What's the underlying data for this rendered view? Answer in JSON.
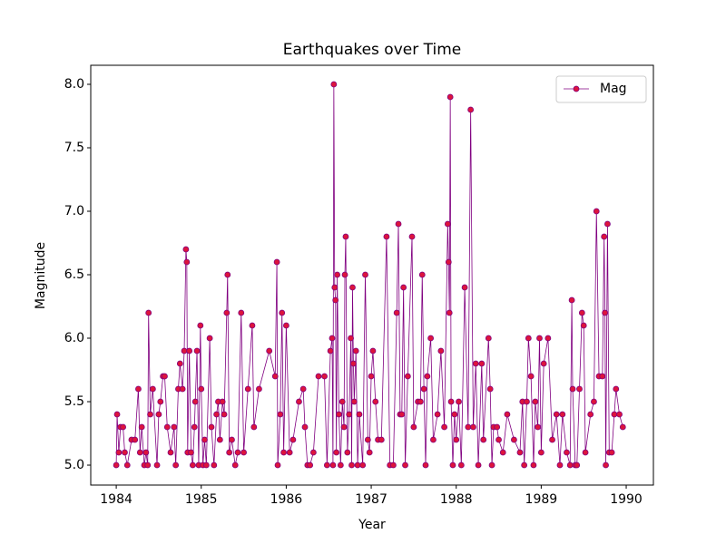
{
  "chart_data": {
    "type": "line",
    "title": "Earthquakes over Time",
    "xlabel": "Year",
    "ylabel": "Magnitude",
    "xlim": [
      1983.7,
      1990.32
    ],
    "xticks": [
      1984,
      1985,
      1986,
      1987,
      1988,
      1989,
      1990
    ],
    "ylim": [
      4.843,
      8.15
    ],
    "yticks": [
      {
        "value": 5,
        "label": "5.0"
      },
      {
        "value": 5.5,
        "label": "5.5"
      },
      {
        "value": 6,
        "label": "6.0"
      },
      {
        "value": 6.5,
        "label": "6.5"
      },
      {
        "value": 7,
        "label": "7.0"
      },
      {
        "value": 7.5,
        "label": "7.5"
      },
      {
        "value": 8,
        "label": "8.0"
      }
    ],
    "legend": "upper right",
    "grid": false,
    "x": [
      1984.0,
      1984.01,
      1984.03,
      1984.05,
      1984.08,
      1984.1,
      1984.13,
      1984.18,
      1984.22,
      1984.26,
      1984.28,
      1984.3,
      1984.33,
      1984.35,
      1984.37,
      1984.38,
      1984.4,
      1984.43,
      1984.48,
      1984.5,
      1984.52,
      1984.55,
      1984.57,
      1984.6,
      1984.64,
      1984.68,
      1984.7,
      1984.73,
      1984.75,
      1984.78,
      1984.8,
      1984.82,
      1984.83,
      1984.84,
      1984.86,
      1984.88,
      1984.9,
      1984.92,
      1984.93,
      1984.95,
      1984.97,
      1984.99,
      1985.0,
      1985.02,
      1985.04,
      1985.06,
      1985.1,
      1985.12,
      1985.15,
      1985.18,
      1985.2,
      1985.22,
      1985.25,
      1985.27,
      1985.3,
      1985.31,
      1985.33,
      1985.36,
      1985.4,
      1985.43,
      1985.47,
      1985.5,
      1985.55,
      1985.6,
      1985.62,
      1985.68,
      1985.8,
      1985.87,
      1985.89,
      1985.9,
      1985.93,
      1985.95,
      1985.97,
      1986.0,
      1986.04,
      1986.08,
      1986.15,
      1986.2,
      1986.22,
      1986.25,
      1986.28,
      1986.32,
      1986.38,
      1986.45,
      1986.48,
      1986.52,
      1986.54,
      1986.55,
      1986.56,
      1986.57,
      1986.58,
      1986.59,
      1986.6,
      1986.62,
      1986.64,
      1986.66,
      1986.68,
      1986.69,
      1986.7,
      1986.72,
      1986.74,
      1986.76,
      1986.77,
      1986.78,
      1986.79,
      1986.8,
      1986.82,
      1986.84,
      1986.86,
      1986.9,
      1986.93,
      1986.96,
      1986.98,
      1987.0,
      1987.02,
      1987.05,
      1987.08,
      1987.12,
      1987.18,
      1987.22,
      1987.26,
      1987.3,
      1987.32,
      1987.34,
      1987.36,
      1987.38,
      1987.4,
      1987.43,
      1987.48,
      1987.5,
      1987.55,
      1987.58,
      1987.6,
      1987.62,
      1987.64,
      1987.66,
      1987.7,
      1987.73,
      1987.78,
      1987.82,
      1987.86,
      1987.9,
      1987.91,
      1987.92,
      1987.93,
      1987.94,
      1987.96,
      1987.98,
      1988.0,
      1988.03,
      1988.06,
      1988.1,
      1988.14,
      1988.17,
      1988.2,
      1988.23,
      1988.26,
      1988.3,
      1988.32,
      1988.38,
      1988.4,
      1988.42,
      1988.44,
      1988.48,
      1988.5,
      1988.55,
      1988.6,
      1988.68,
      1988.75,
      1988.78,
      1988.8,
      1988.83,
      1988.85,
      1988.88,
      1988.91,
      1988.93,
      1988.96,
      1988.98,
      1989.0,
      1989.03,
      1989.08,
      1989.13,
      1989.18,
      1989.22,
      1989.25,
      1989.3,
      1989.34,
      1989.36,
      1989.37,
      1989.4,
      1989.42,
      1989.45,
      1989.48,
      1989.5,
      1989.52,
      1989.58,
      1989.62,
      1989.65,
      1989.68,
      1989.72,
      1989.74,
      1989.75,
      1989.76,
      1989.78,
      1989.8,
      1989.83,
      1989.86,
      1989.88,
      1989.92,
      1989.96
    ],
    "series": [
      {
        "name": "Mag",
        "color": "#800080",
        "marker_color": "#dc143c",
        "values": [
          5.0,
          5.4,
          5.1,
          5.3,
          5.3,
          5.1,
          5.0,
          5.2,
          5.2,
          5.6,
          5.1,
          5.3,
          5.0,
          5.1,
          5.0,
          6.2,
          5.4,
          5.6,
          5.0,
          5.4,
          5.5,
          5.7,
          5.7,
          5.3,
          5.1,
          5.3,
          5.0,
          5.6,
          5.8,
          5.6,
          5.9,
          6.7,
          6.6,
          5.1,
          5.9,
          5.1,
          5.0,
          5.3,
          5.5,
          5.9,
          5.0,
          6.1,
          5.6,
          5.0,
          5.2,
          5.0,
          6.0,
          5.3,
          5.0,
          5.4,
          5.5,
          5.2,
          5.5,
          5.4,
          6.2,
          6.5,
          5.1,
          5.2,
          5.0,
          5.1,
          6.2,
          5.1,
          5.6,
          6.1,
          5.3,
          5.6,
          5.9,
          5.7,
          6.6,
          5.0,
          5.4,
          6.2,
          5.1,
          6.1,
          5.1,
          5.2,
          5.5,
          5.6,
          5.3,
          5.0,
          5.0,
          5.1,
          5.7,
          5.7,
          5.0,
          5.9,
          6.0,
          5.0,
          8.0,
          6.4,
          6.3,
          5.1,
          6.5,
          5.4,
          5.0,
          5.5,
          5.3,
          6.5,
          6.8,
          5.1,
          5.4,
          6.0,
          5.0,
          6.4,
          5.8,
          5.5,
          5.9,
          5.0,
          5.4,
          5.0,
          6.5,
          5.2,
          5.1,
          5.7,
          5.9,
          5.5,
          5.2,
          5.2,
          6.8,
          5.0,
          5.0,
          6.2,
          6.9,
          5.4,
          5.4,
          6.4,
          5.0,
          5.7,
          6.8,
          5.3,
          5.5,
          5.5,
          6.5,
          5.6,
          5.0,
          5.7,
          6.0,
          5.2,
          5.4,
          5.9,
          5.3,
          6.9,
          6.6,
          6.2,
          7.9,
          5.5,
          5.0,
          5.4,
          5.2,
          5.5,
          5.0,
          6.4,
          5.3,
          7.8,
          5.3,
          5.8,
          5.0,
          5.8,
          5.2,
          6.0,
          5.6,
          5.0,
          5.3,
          5.3,
          5.2,
          5.1,
          5.4,
          5.2,
          5.1,
          5.5,
          5.0,
          5.5,
          6.0,
          5.7,
          5.0,
          5.5,
          5.3,
          6.0,
          5.1,
          5.8,
          6.0,
          5.2,
          5.4,
          5.0,
          5.4,
          5.1,
          5.0,
          6.3,
          5.6,
          5.0,
          5.0,
          5.6,
          6.2,
          6.1,
          5.1,
          5.4,
          5.5,
          7.0,
          5.7,
          5.7,
          6.8,
          6.2,
          5.0,
          6.9,
          5.1,
          5.1,
          5.4,
          5.6,
          5.4,
          5.3
        ]
      }
    ]
  }
}
